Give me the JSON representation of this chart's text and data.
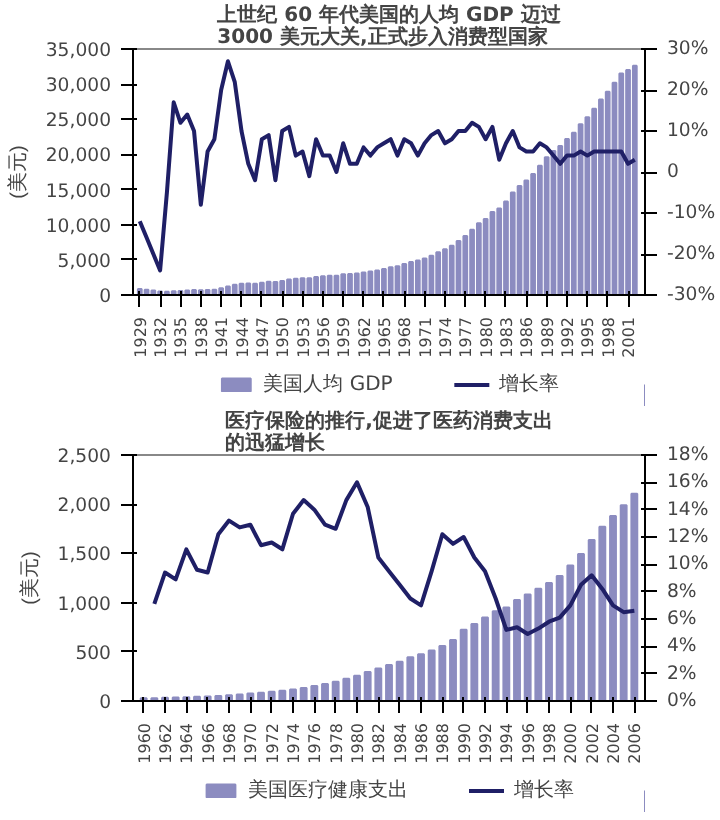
{
  "chart_data": [
    {
      "type": "bar",
      "annotations": [
        "上世纪 60 年代美国的人均 GDP 迈过\n3000 美元大关,正式步入消费型国家"
      ],
      "ylabel": "(美元)",
      "x": [
        1929,
        1930,
        1931,
        1932,
        1933,
        1934,
        1935,
        1936,
        1937,
        1938,
        1939,
        1940,
        1941,
        1942,
        1943,
        1944,
        1945,
        1946,
        1947,
        1948,
        1949,
        1950,
        1951,
        1952,
        1953,
        1954,
        1955,
        1956,
        1957,
        1958,
        1959,
        1960,
        1961,
        1962,
        1963,
        1964,
        1965,
        1966,
        1967,
        1968,
        1969,
        1970,
        1971,
        1972,
        1973,
        1974,
        1975,
        1976,
        1977,
        1978,
        1979,
        1980,
        1981,
        1982,
        1983,
        1984,
        1985,
        1986,
        1987,
        1988,
        1989,
        1990,
        1991,
        1992,
        1993,
        1994,
        1995,
        1996,
        1997,
        1998,
        1999,
        2000,
        2001,
        2002
      ],
      "series": [
        {
          "name": "美国人均 GDP",
          "color": "#8c8cc0",
          "values": [
            850,
            760,
            650,
            500,
            470,
            530,
            580,
            650,
            710,
            660,
            700,
            760,
            950,
            1200,
            1450,
            1600,
            1650,
            1600,
            1750,
            1900,
            1850,
            2000,
            2200,
            2300,
            2400,
            2400,
            2550,
            2650,
            2750,
            2750,
            2950,
            3000,
            3050,
            3200,
            3350,
            3500,
            3700,
            3950,
            4100,
            4400,
            4700,
            4900,
            5200,
            5600,
            6100,
            6500,
            7000,
            7700,
            8400,
            9300,
            10200,
            10800,
            11800,
            12300,
            13300,
            14600,
            15500,
            16300,
            17200,
            18400,
            19600,
            20500,
            21200,
            22200,
            23100,
            24300,
            25300,
            26500,
            27800,
            28900,
            30200,
            31500,
            32000,
            32600
          ]
        },
        {
          "name": "增长率",
          "type": "line",
          "axis": "y2",
          "color": "#1f1f66",
          "values": [
            -12,
            -16,
            -20,
            -24,
            -5,
            17,
            12,
            14,
            10,
            -8,
            5,
            8,
            20,
            27,
            22,
            10,
            2,
            -2,
            8,
            9,
            -2,
            10,
            11,
            4,
            5,
            -1,
            8,
            4,
            4,
            0,
            7,
            2,
            2,
            6,
            4,
            6,
            7,
            8,
            4,
            8,
            7,
            4,
            7,
            9,
            10,
            7,
            8,
            10,
            10,
            12,
            11,
            8,
            11,
            3,
            7,
            10,
            6,
            5,
            5,
            7,
            6,
            4,
            2,
            4,
            4,
            5,
            4,
            5,
            5,
            5,
            5,
            5,
            2,
            3
          ]
        }
      ],
      "xlim": [
        1928,
        2003.5
      ],
      "xticks": [
        1929,
        1932,
        1935,
        1938,
        1941,
        1944,
        1947,
        1950,
        1953,
        1956,
        1959,
        1962,
        1965,
        1968,
        1971,
        1974,
        1977,
        1980,
        1983,
        1986,
        1989,
        1992,
        1995,
        1998,
        2001
      ],
      "ylim": [
        0,
        35000
      ],
      "yticks": [
        0,
        {
          "value": 5000,
          "label": "5,000"
        },
        {
          "value": 10000,
          "label": "10,000"
        },
        {
          "value": 15000,
          "label": "15,000"
        },
        {
          "value": 20000,
          "label": "20,000"
        },
        {
          "value": 25000,
          "label": "25,000"
        },
        {
          "value": 30000,
          "label": "30,000"
        },
        {
          "value": 35000,
          "label": "35,000"
        }
      ],
      "y2lim": [
        -30,
        30
      ],
      "y2ticks": [
        {
          "value": -30,
          "label": "-30%"
        },
        {
          "value": -20,
          "label": "-20%"
        },
        {
          "value": -10,
          "label": "-10%"
        },
        0,
        {
          "value": 10,
          "label": "10%"
        },
        {
          "value": 20,
          "label": "20%"
        },
        {
          "value": 30,
          "label": "30%"
        }
      ],
      "legend": "bottom"
    },
    {
      "type": "bar",
      "annotations": [
        "医疗保险的推行,促进了医药消费支出的迅猛增长"
      ],
      "ylabel": "(美元)",
      "x": [
        1960,
        1961,
        1962,
        1963,
        1964,
        1965,
        1966,
        1967,
        1968,
        1969,
        1970,
        1971,
        1972,
        1973,
        1974,
        1975,
        1976,
        1977,
        1978,
        1979,
        1980,
        1981,
        1982,
        1983,
        1984,
        1985,
        1986,
        1987,
        1988,
        1989,
        1990,
        1991,
        1992,
        1993,
        1994,
        1995,
        1996,
        1997,
        1998,
        1999,
        2000,
        2001,
        2002,
        2003,
        2004,
        2005,
        2006
      ],
      "series": [
        {
          "name": "美国医疗健康支出",
          "color": "#8c8cc0",
          "values": [
            27,
            29,
            32,
            35,
            38,
            42,
            46,
            51,
            58,
            65,
            75,
            83,
            93,
            103,
            116,
            133,
            153,
            174,
            196,
            226,
            256,
            295,
            330,
            365,
            400,
            444,
            474,
            512,
            558,
            621,
            724,
            782,
            848,
            912,
            950,
            1027,
            1082,
            1140,
            1200,
            1270,
            1378,
            1495,
            1637,
            1772,
            1880,
            1990,
            2105
          ]
        },
        {
          "name": "增长率",
          "type": "line",
          "axis": "y2",
          "color": "#1f1f66",
          "values": [
            null,
            7.1,
            9.4,
            8.9,
            11.1,
            9.6,
            9.4,
            12.2,
            13.2,
            12.7,
            12.9,
            11.4,
            11.6,
            11.1,
            13.7,
            14.7,
            14.0,
            12.9,
            12.6,
            14.7,
            16.0,
            14.2,
            10.5,
            9.5,
            8.5,
            7.5,
            7.0,
            9.5,
            12.2,
            11.5,
            12.0,
            10.5,
            9.5,
            7.5,
            5.2,
            5.4,
            4.9,
            5.3,
            5.8,
            6.1,
            7.0,
            8.5,
            9.2,
            8.2,
            7.0,
            6.5,
            6.6
          ]
        }
      ],
      "xlim": [
        1959,
        2007
      ],
      "xticks": [
        1960,
        1962,
        1964,
        1966,
        1968,
        1970,
        1972,
        1974,
        1976,
        1978,
        1980,
        1982,
        1984,
        1986,
        1988,
        1990,
        1992,
        1994,
        1996,
        1998,
        2000,
        2002,
        2004,
        2006
      ],
      "ylim": [
        0,
        2500
      ],
      "yticks": [
        0,
        500,
        {
          "value": 1000,
          "label": "1,000"
        },
        {
          "value": 1500,
          "label": "1,500"
        },
        {
          "value": 2000,
          "label": "2,000"
        },
        {
          "value": 2500,
          "label": "2,500"
        }
      ],
      "y2lim": [
        0,
        18
      ],
      "y2ticks": [
        {
          "value": 0,
          "label": "0%"
        },
        {
          "value": 2,
          "label": "2%"
        },
        {
          "value": 4,
          "label": "4%"
        },
        {
          "value": 6,
          "label": "6%"
        },
        {
          "value": 8,
          "label": "8%"
        },
        {
          "value": 10,
          "label": "10%"
        },
        {
          "value": 12,
          "label": "12%"
        },
        {
          "value": 14,
          "label": "14%"
        },
        {
          "value": 16,
          "label": "16%"
        },
        {
          "value": 18,
          "label": "18%"
        }
      ],
      "legend": "bottom"
    }
  ]
}
